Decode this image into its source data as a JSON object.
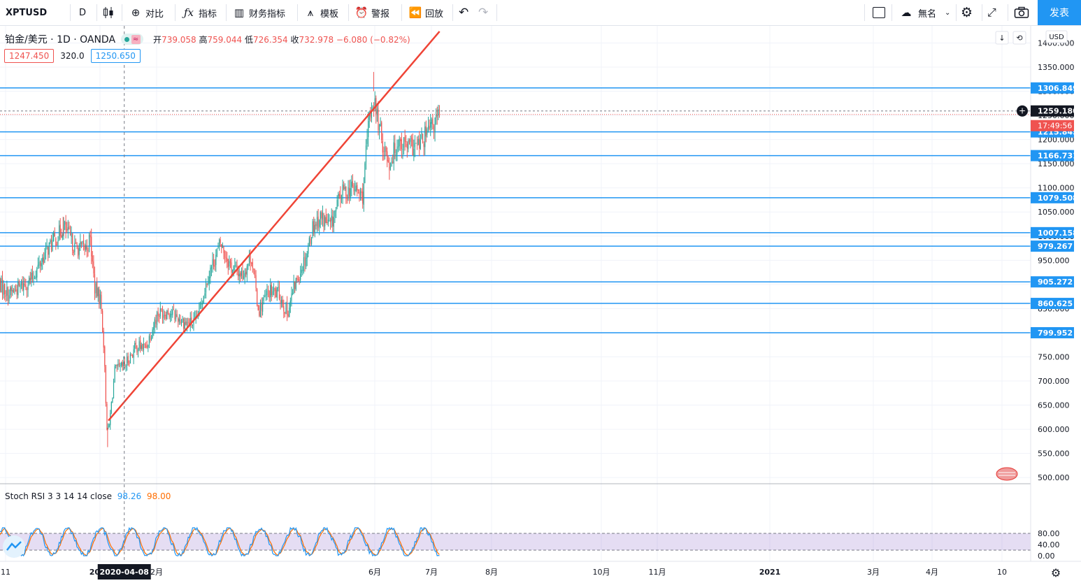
{
  "toolbar": {
    "symbol": "XPTUSD",
    "interval": "D",
    "compare_label": "对比",
    "indicators_label": "指标",
    "financials_label": "财务指标",
    "templates_label": "模板",
    "alert_label": "警报",
    "replay_label": "回放",
    "layout_name": "無名",
    "publish_label": "发表"
  },
  "legend": {
    "title": "铂金/美元 · 1D · OANDA",
    "open_label": "开",
    "open": "739.058",
    "high_label": "高",
    "high": "759.044",
    "low_label": "低",
    "low": "726.354",
    "close_label": "收",
    "close": "732.978",
    "change": "−6.080 (−0.82%)",
    "bid": "1247.450",
    "spread": "320.0",
    "ask": "1250.650"
  },
  "currency_label": "USD",
  "countdown": "17:49:56",
  "crosshair_date": "2020-04-08",
  "colors": {
    "up": "#26a69a",
    "down": "#ef5350",
    "hline": "#2196f3",
    "trend": "#ef4436",
    "rsi_k": "#2196f3",
    "rsi_d": "#ff6d00",
    "rsi_band": "#7e57c2"
  },
  "chart_data": [
    {
      "type": "candlestick",
      "symbol": "XPTUSD",
      "ylim": [
        490,
        1430
      ],
      "y_ticks": [
        "500.000",
        "550.000",
        "600.000",
        "650.000",
        "700.000",
        "750.000",
        "800.000",
        "850.000",
        "900.000",
        "950.000",
        "1000.000",
        "1050.000",
        "1100.000",
        "1150.000",
        "1200.000",
        "1250.000",
        "1300.000",
        "1350.000",
        "1400.000"
      ],
      "x_ticks": [
        "11",
        "2020",
        "2月",
        "6月",
        "7月",
        "8月",
        "10月",
        "11月",
        "2021",
        "3月",
        "4月",
        "10"
      ],
      "horizontal_levels": [
        1306.849,
        1215.845,
        1166.731,
        1079.508,
        1007.158,
        979.267,
        905.272,
        860.625,
        799.952
      ],
      "current_price": 1259.18,
      "trendline": [
        {
          "date": "2020-03-19",
          "price": 618
        },
        {
          "date": "2021-05-10",
          "price": 1424
        }
      ],
      "anchors": [
        [
          "2019-11-01",
          905
        ],
        [
          "2019-11-14",
          880
        ],
        [
          "2019-11-29",
          895
        ],
        [
          "2019-12-13",
          910
        ],
        [
          "2020-01-03",
          975
        ],
        [
          "2020-01-15",
          1000
        ],
        [
          "2020-01-23",
          1020
        ],
        [
          "2020-02-06",
          975
        ],
        [
          "2020-02-20",
          975
        ],
        [
          "2020-02-25",
          995
        ],
        [
          "2020-03-02",
          890
        ],
        [
          "2020-03-09",
          870
        ],
        [
          "2020-03-13",
          780
        ],
        [
          "2020-03-17",
          610
        ],
        [
          "2020-03-19",
          592
        ],
        [
          "2020-03-27",
          720
        ],
        [
          "2020-04-08",
          730
        ],
        [
          "2020-04-23",
          772
        ],
        [
          "2020-05-05",
          770
        ],
        [
          "2020-05-20",
          840
        ],
        [
          "2020-06-03",
          845
        ],
        [
          "2020-06-24",
          820
        ],
        [
          "2020-07-07",
          820
        ],
        [
          "2020-07-22",
          915
        ],
        [
          "2020-08-07",
          985
        ],
        [
          "2020-08-21",
          935
        ],
        [
          "2020-09-04",
          920
        ],
        [
          "2020-09-15",
          960
        ],
        [
          "2020-09-24",
          845
        ],
        [
          "2020-10-07",
          885
        ],
        [
          "2020-10-20",
          880
        ],
        [
          "2020-10-30",
          840
        ],
        [
          "2020-11-09",
          900
        ],
        [
          "2020-11-24",
          965
        ],
        [
          "2020-12-01",
          1020
        ],
        [
          "2020-12-11",
          1040
        ],
        [
          "2020-12-24",
          1020
        ],
        [
          "2021-01-06",
          1090
        ],
        [
          "2021-01-22",
          1100
        ],
        [
          "2021-02-02",
          1080
        ],
        [
          "2021-02-10",
          1240
        ],
        [
          "2021-02-16",
          1285
        ],
        [
          "2021-02-26",
          1200
        ],
        [
          "2021-03-08",
          1150
        ],
        [
          "2021-03-19",
          1200
        ],
        [
          "2021-03-31",
          1185
        ],
        [
          "2021-04-13",
          1185
        ],
        [
          "2021-04-28",
          1220
        ],
        [
          "2021-05-10",
          1250
        ]
      ]
    },
    {
      "type": "line",
      "title": "Stoch RSI 3 3 14 14 close",
      "series": [
        {
          "name": "K",
          "last": 98.26
        },
        {
          "name": "D",
          "last": 98.0
        }
      ],
      "ylim": [
        -5,
        105
      ],
      "y_ticks": [
        "0.00",
        "40.00",
        "80.00"
      ],
      "band": [
        20,
        80
      ]
    }
  ]
}
